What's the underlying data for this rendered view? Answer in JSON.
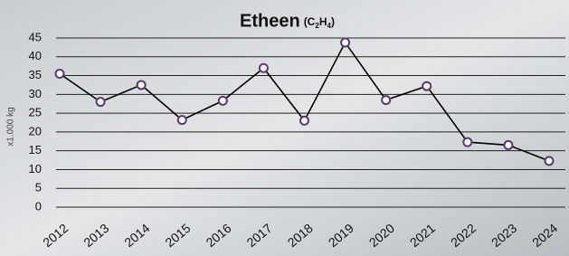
{
  "chart_data": {
    "type": "line",
    "title": "Etheen",
    "title_formula": [
      "(C",
      "2",
      "H",
      "4",
      ")"
    ],
    "y_label": "x1.000 kg",
    "categories": [
      "2012",
      "2013",
      "2014",
      "2015",
      "2016",
      "2017",
      "2018",
      "2019",
      "2020",
      "2021",
      "2022",
      "2023",
      "2024"
    ],
    "series": [
      {
        "name": "Etheen",
        "color": "#000000",
        "marker_color": "#5b3a6e",
        "values": [
          35.5,
          28,
          32.5,
          23.2,
          28.3,
          37,
          23,
          43.8,
          28.5,
          32.2,
          17.3,
          16.5,
          12.3
        ]
      }
    ],
    "ylim": [
      0,
      45
    ],
    "yticks": [
      0,
      5,
      10,
      15,
      20,
      25,
      30,
      35,
      40,
      45
    ],
    "grid": true
  }
}
